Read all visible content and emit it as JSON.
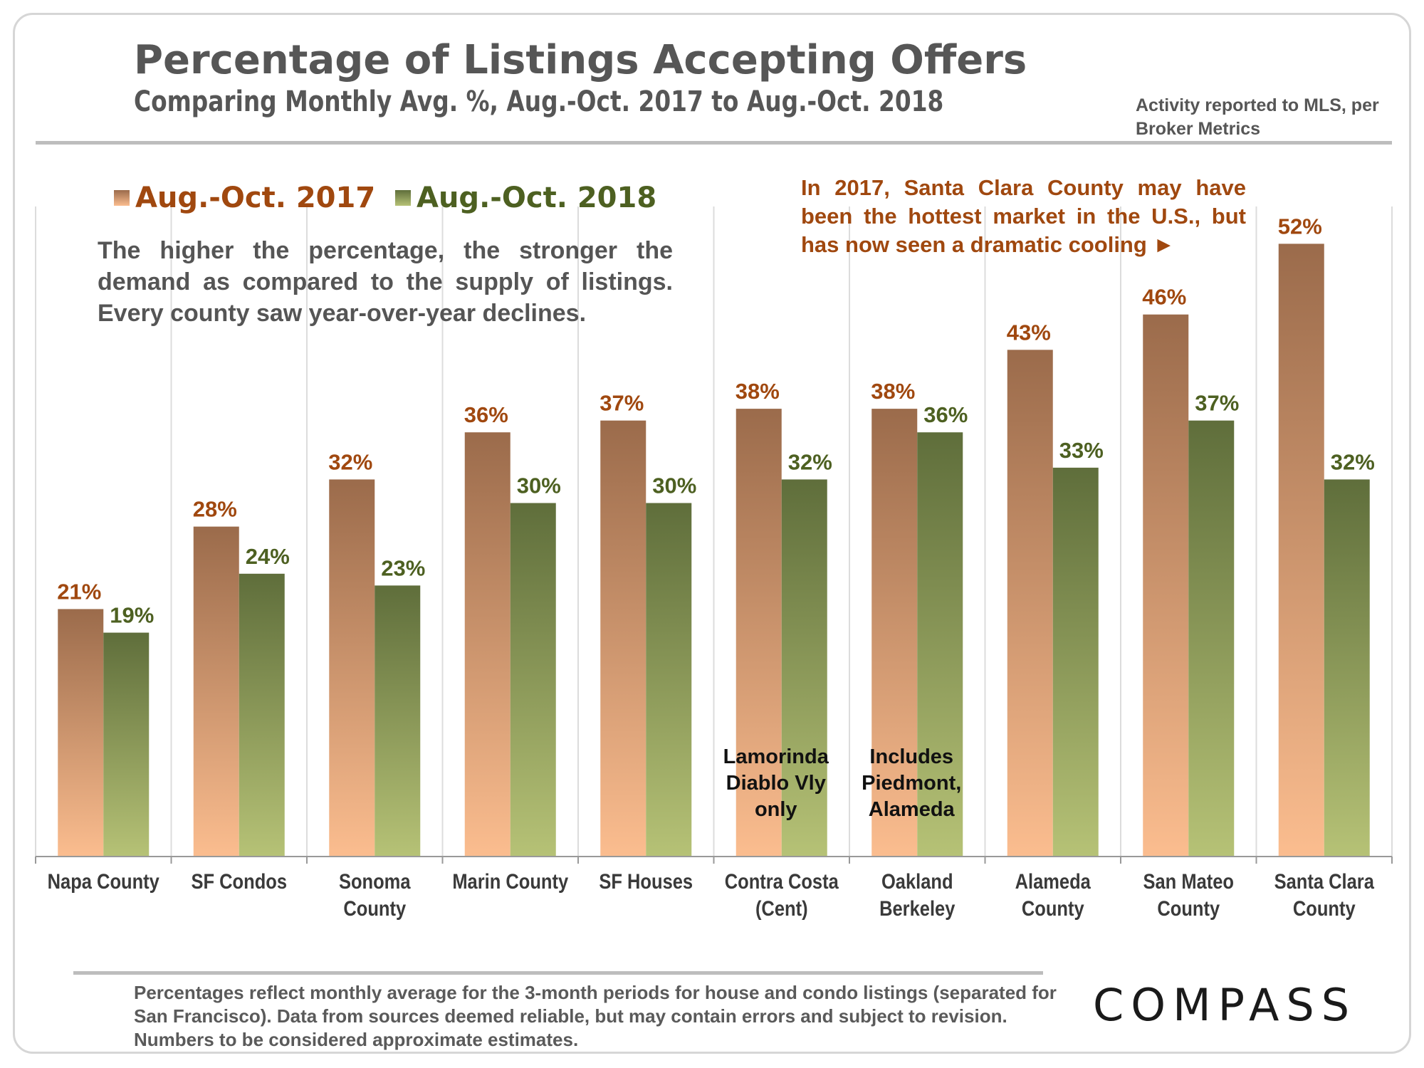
{
  "title": "Percentage of Listings Accepting Offers",
  "subtitle": "Comparing Monthly Avg. %, Aug.-Oct. 2017 to Aug.-Oct. 2018",
  "source": [
    "Activity reported to MLS, per",
    "Broker Metrics"
  ],
  "note": "The higher the percentage, the stronger the demand as compared to the supply of listings. Every county saw year-over-year declines.",
  "callout": "In 2017, Santa Clara County may have been the hottest market in the U.S., but has now seen a dramatic cooling ►",
  "footnote": "Percentages reflect monthly average for the 3-month periods for house and condo listings (separated for San Francisco). Data from sources deemed reliable, but may contain errors and subject to revision. Numbers to be considered approximate estimates.",
  "logo": "COMPASS",
  "colors": {
    "series2017_top": "#9b6b4b",
    "series2017_bottom": "#fbbd8f",
    "series2018_top": "#5f6e3b",
    "series2018_bottom": "#b6c276",
    "label2017": "#a0480f",
    "label2018": "#4d6021"
  },
  "chart_data": {
    "type": "bar",
    "title": "Percentage of Listings Accepting Offers",
    "ylim": [
      0,
      55
    ],
    "categories": [
      [
        "Napa County"
      ],
      [
        "SF Condos"
      ],
      [
        "Sonoma",
        "County"
      ],
      [
        "Marin  County"
      ],
      [
        "SF Houses"
      ],
      [
        "Contra Costa",
        "(Cent)"
      ],
      [
        "Oakland",
        "Berkeley"
      ],
      [
        "Alameda",
        "County"
      ],
      [
        "San Mateo",
        "County"
      ],
      [
        "Santa Clara",
        "County"
      ]
    ],
    "series": [
      {
        "name": "Aug.-Oct. 2017",
        "values": [
          21,
          28,
          32,
          36,
          37,
          38,
          38,
          43,
          46,
          52
        ]
      },
      {
        "name": "Aug.-Oct. 2018",
        "values": [
          19,
          24,
          23,
          30,
          30,
          32,
          36,
          33,
          37,
          32
        ]
      }
    ],
    "annotations": [
      {
        "category_index": 5,
        "lines": [
          "Lamorinda",
          "Diablo Vly",
          "only"
        ]
      },
      {
        "category_index": 6,
        "lines": [
          "Includes",
          "Piedmont,",
          "Alameda"
        ]
      }
    ]
  }
}
